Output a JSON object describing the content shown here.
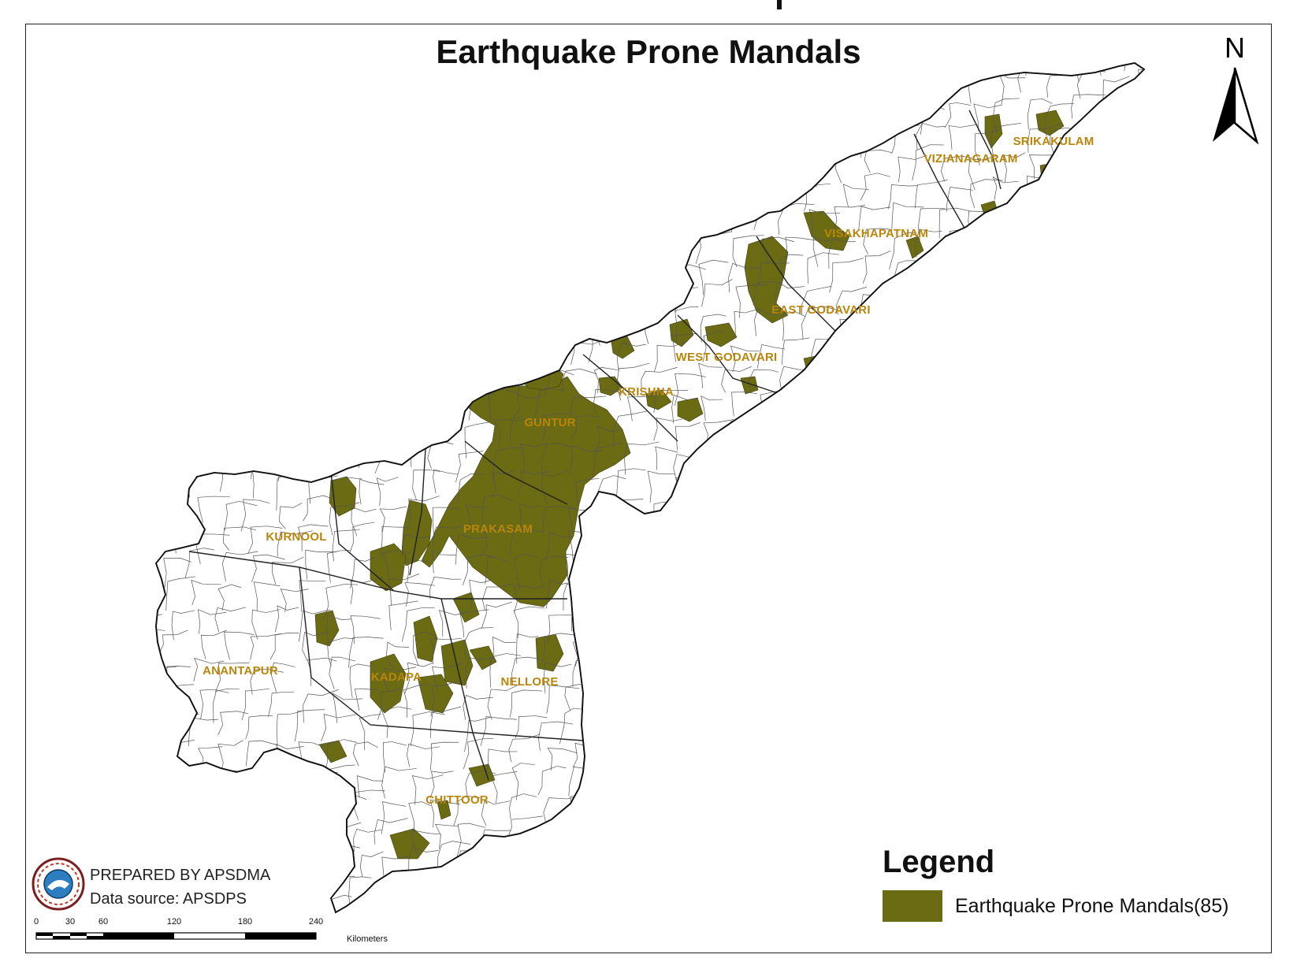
{
  "map": {
    "title": "Earthquake Prone Mandals",
    "north_label": "N",
    "region_fill": "#ffffff",
    "boundary_color": "#555555",
    "highlight_color": "#6b6b14",
    "label_color": "#b8860b"
  },
  "districts": [
    {
      "key": "srikakulam",
      "name": "SRIKAKULAM"
    },
    {
      "key": "vizianagaram",
      "name": "VIZIANAGARAM"
    },
    {
      "key": "visakhapatnam",
      "name": "VISAKHAPATNAM"
    },
    {
      "key": "east_godavari",
      "name": "EAST GODAVARI"
    },
    {
      "key": "west_godavari",
      "name": "WEST GODAVARI"
    },
    {
      "key": "krishna",
      "name": "KRISHNA"
    },
    {
      "key": "guntur",
      "name": "GUNTUR"
    },
    {
      "key": "prakasam",
      "name": "PRAKASAM"
    },
    {
      "key": "kurnool",
      "name": "KURNOOL"
    },
    {
      "key": "anantapur",
      "name": "ANANTAPUR"
    },
    {
      "key": "kadapa",
      "name": "KADAPA"
    },
    {
      "key": "nellore",
      "name": "NELLORE"
    },
    {
      "key": "chittoor",
      "name": "CHITTOOR"
    }
  ],
  "legend": {
    "title": "Legend",
    "items": [
      {
        "label": "Earthquake Prone Mandals(85)",
        "color": "#6b6b14"
      }
    ]
  },
  "credits": {
    "prepared_by": "PREPARED BY APSDMA",
    "data_source": "Data source: APSDPS"
  },
  "scale": {
    "ticks": [
      "0",
      "30",
      "60",
      "120",
      "180",
      "240"
    ],
    "units": "Kilometers"
  },
  "icons": {
    "north_arrow": "north-arrow-icon",
    "logo": "apsdma-logo-icon"
  }
}
